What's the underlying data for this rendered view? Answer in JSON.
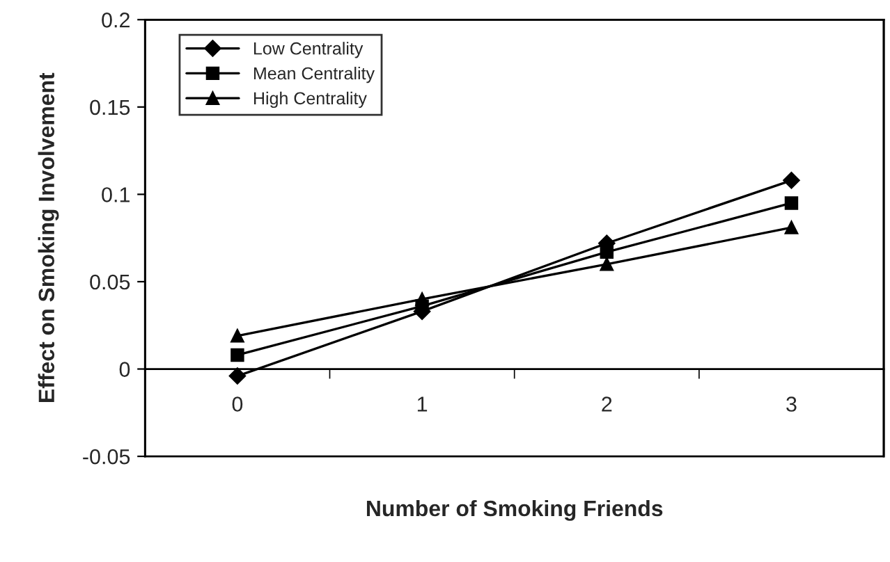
{
  "chart_data": {
    "type": "line",
    "xlabel": "Number of Smoking Friends",
    "ylabel": "Effect on Smoking Involvement",
    "categories": [
      "0",
      "1",
      "2",
      "3"
    ],
    "series": [
      {
        "name": "Low Centrality",
        "color": "#000000",
        "marker": "diamond",
        "values": [
          -0.004,
          0.033,
          0.072,
          0.108
        ]
      },
      {
        "name": "Mean Centrality",
        "color": "#000000",
        "marker": "square",
        "values": [
          0.008,
          0.036,
          0.067,
          0.095
        ]
      },
      {
        "name": "High Centrality",
        "color": "#000000",
        "marker": "triangle",
        "values": [
          0.019,
          0.04,
          0.06,
          0.081
        ]
      }
    ],
    "ylim": [
      -0.05,
      0.2
    ],
    "yticks": [
      {
        "value": -0.05,
        "label": "-0.05"
      },
      0,
      0.05,
      0.1,
      0.15,
      0.2
    ],
    "grid": false,
    "legend": "top left",
    "line_style": "solid"
  }
}
